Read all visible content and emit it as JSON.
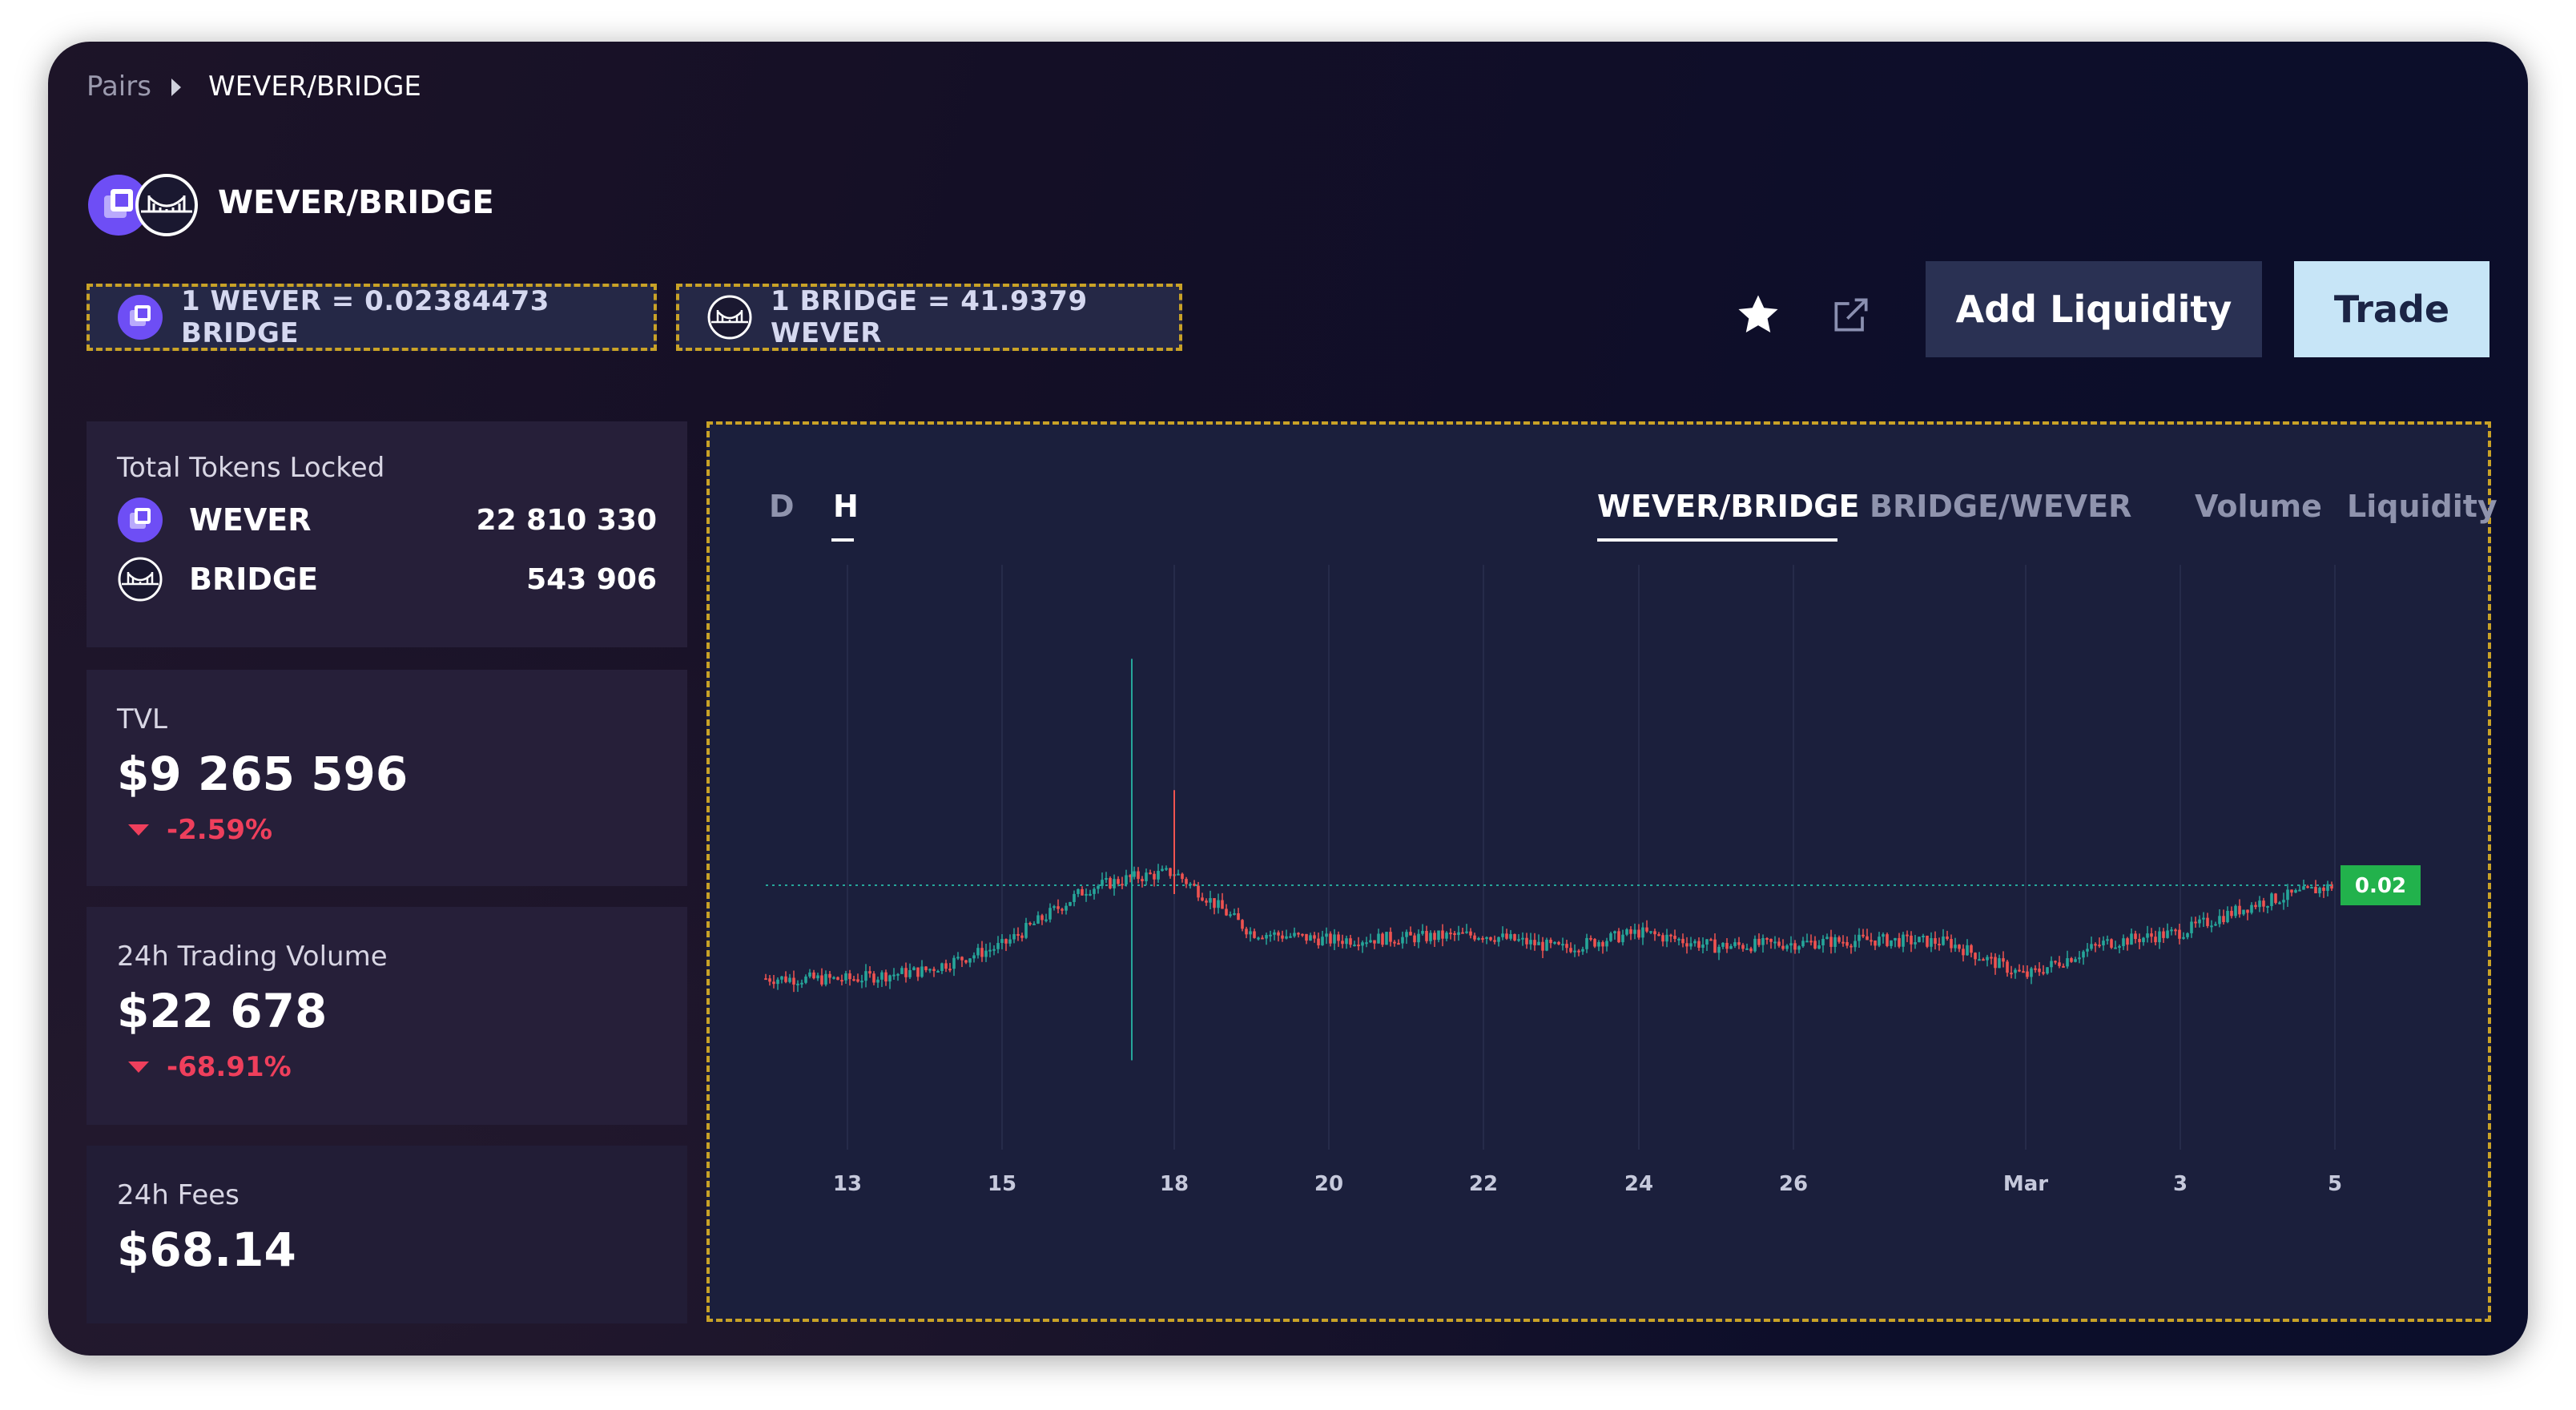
{
  "breadcrumb": {
    "root": "Pairs",
    "current": "WEVER/BRIDGE"
  },
  "pair": {
    "title": "WEVER/BRIDGE",
    "icons": [
      "wever-token-icon",
      "bridge-token-icon"
    ]
  },
  "rates": [
    {
      "text": "1 WEVER = 0.02384473 BRIDGE",
      "icon": "wever-token-icon"
    },
    {
      "text": "1 BRIDGE = 41.9379 WEVER",
      "icon": "bridge-token-icon"
    }
  ],
  "actions": {
    "favorite_icon": "star-icon",
    "external_icon": "external-link-icon",
    "add_liquidity": "Add Liquidity",
    "trade": "Trade"
  },
  "stats": {
    "locked": {
      "label": "Total Tokens Locked",
      "tokens": [
        {
          "name": "WEVER",
          "amount": "22 810 330"
        },
        {
          "name": "BRIDGE",
          "amount": "543 906"
        }
      ]
    },
    "tvl": {
      "label": "TVL",
      "value": "$9 265 596",
      "change": "-2.59%"
    },
    "volume": {
      "label": "24h Trading Volume",
      "value": "$22 678",
      "change": "-68.91%"
    },
    "fees": {
      "label": "24h Fees",
      "value": "$68.14"
    }
  },
  "chart_tabs": {
    "timeframes": [
      "D",
      "H"
    ],
    "active_timeframe": "H",
    "views": [
      "WEVER/BRIDGE",
      "BRIDGE/WEVER",
      "Volume",
      "Liquidity"
    ],
    "active_view": "WEVER/BRIDGE"
  },
  "colors": {
    "accent_brand": "#7a5cff",
    "up": "#26a69a",
    "down": "#ef5350",
    "negative": "#ef3f5c",
    "price_tag": "#22b24c",
    "chip_border": "#c9a227"
  },
  "chart_data": {
    "type": "candlestick",
    "x_ticks": [
      "13",
      "15",
      "18",
      "20",
      "22",
      "24",
      "26",
      "Mar",
      "3",
      "5"
    ],
    "y_range": [
      0.0,
      0.052
    ],
    "last_price_label": "0.02",
    "last_price": 0.0238,
    "grid": true,
    "series": [
      {
        "x": "12",
        "y": 0.0153
      },
      {
        "x": "13",
        "y": 0.0152
      },
      {
        "x": "14",
        "y": 0.016
      },
      {
        "x": "15",
        "y": 0.0183
      },
      {
        "x": "16",
        "y": 0.0235
      },
      {
        "x": "17",
        "y": 0.0245
      },
      {
        "x": "18",
        "y": 0.025
      },
      {
        "x": "19",
        "y": 0.0195
      },
      {
        "x": "20",
        "y": 0.0188
      },
      {
        "x": "21",
        "y": 0.019
      },
      {
        "x": "22",
        "y": 0.0193
      },
      {
        "x": "23",
        "y": 0.018
      },
      {
        "x": "24",
        "y": 0.0195
      },
      {
        "x": "25",
        "y": 0.0182
      },
      {
        "x": "26",
        "y": 0.0185
      },
      {
        "x": "27",
        "y": 0.0188
      },
      {
        "x": "28",
        "y": 0.0186
      },
      {
        "x": "Mar",
        "y": 0.0155
      },
      {
        "x": "2",
        "y": 0.0185
      },
      {
        "x": "3",
        "y": 0.0195
      },
      {
        "x": "4",
        "y": 0.0222
      },
      {
        "x": "5",
        "y": 0.0238
      }
    ],
    "notable_wicks": [
      {
        "x": "17",
        "high": 0.0445,
        "low": 0.0078
      },
      {
        "x": "18",
        "high": 0.0325,
        "low": 0.023
      }
    ]
  }
}
